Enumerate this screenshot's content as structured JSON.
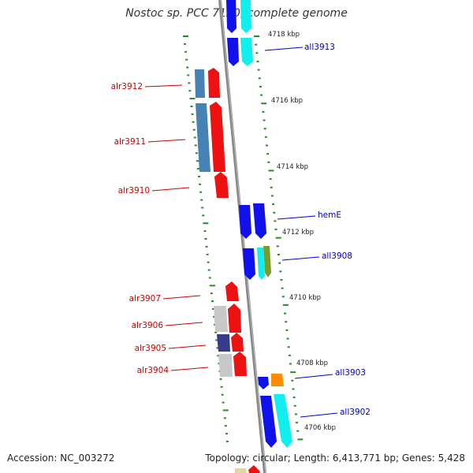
{
  "title": "Nostoc sp. PCC 7120, complete genome",
  "footer": {
    "accession": "Accession: NC_003272",
    "summary": "Topology: circular; Length: 6,413,771 bp; Genes: 5,428"
  },
  "ticks": [
    "4718 kbp",
    "4716 kbp",
    "4714 kbp",
    "4712 kbp",
    "4710 kbp",
    "4708 kbp",
    "4706 kbp"
  ],
  "left_labels": [
    "alr3912",
    "alr3911",
    "alr3910",
    "alr3907",
    "alr3906",
    "alr3905",
    "alr3904"
  ],
  "right_labels": [
    "all3913",
    "hemE",
    "all3908",
    "all3903",
    "all3902"
  ],
  "colors": {
    "forward": "#ee1111",
    "reverse": "#1111ee",
    "cyan": "#11eeee",
    "steelblue": "#4682b4",
    "gray": "#c8c8c8",
    "darkblue": "#3a3a8a",
    "olive": "#7a9a2a",
    "orange": "#ff8c00",
    "grid": "#2a8a2a",
    "backbone": "#888888",
    "left_label": "#cc0000",
    "right_label": "#0000cc"
  }
}
